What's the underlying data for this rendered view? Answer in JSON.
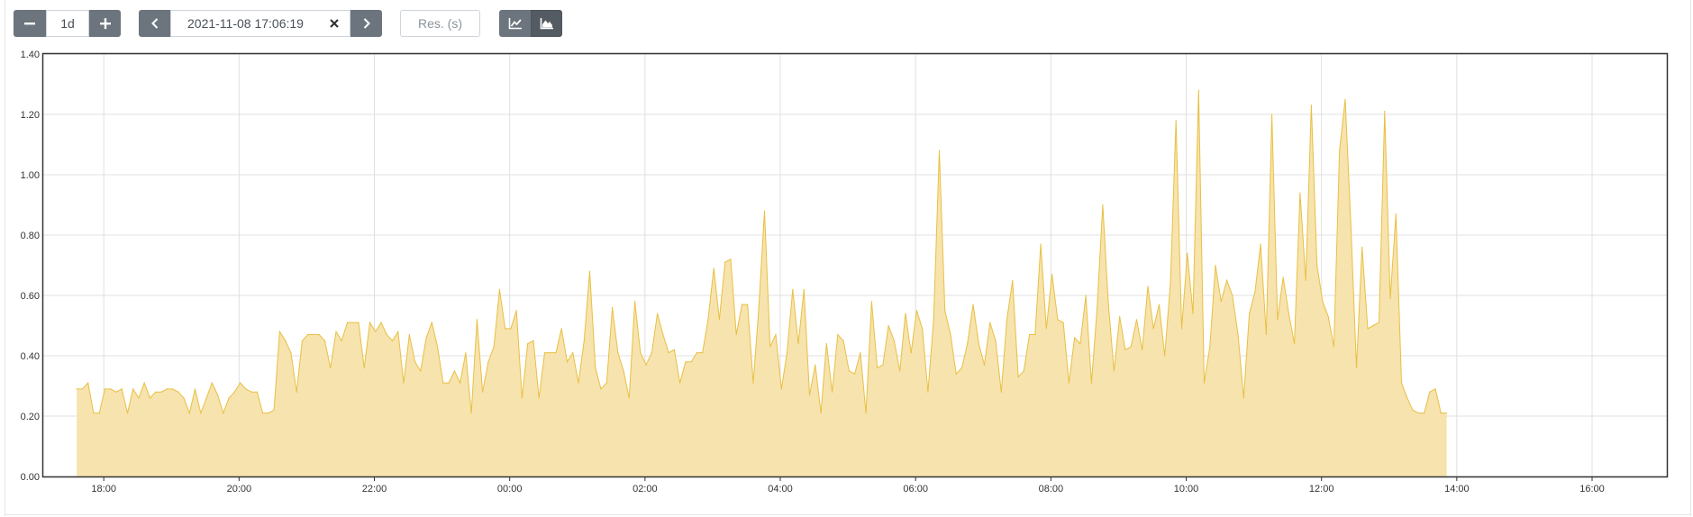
{
  "toolbar": {
    "range_value": "1d",
    "end_time_value": "2021-11-08 17:06:19",
    "resolution_placeholder": "Res. (s)",
    "icons": {
      "decrease": "minus-icon",
      "increase": "plus-icon",
      "previous": "chevron-left-icon",
      "clear": "close-icon",
      "next": "chevron-right-icon",
      "line_mode": "line-chart-icon",
      "stacked_mode": "area-chart-icon"
    },
    "stacked_mode_active": true
  },
  "chart_data": {
    "type": "area",
    "title": "",
    "xlabel": "",
    "ylabel": "",
    "ylim": [
      0,
      1.4
    ],
    "y_ticks": [
      "0.00",
      "0.20",
      "0.40",
      "0.60",
      "0.80",
      "1.00",
      "1.20",
      "1.40"
    ],
    "x_ticks": [
      "18:00",
      "20:00",
      "22:00",
      "00:00",
      "02:00",
      "04:00",
      "06:00",
      "08:00",
      "10:00",
      "12:00",
      "14:00",
      "16:00"
    ],
    "x_range": [
      "2021-11-07 17:06:19",
      "2021-11-08 17:06:19"
    ],
    "grid": true,
    "legend": "none",
    "colors": {
      "fill": "#f7e3ae",
      "line": "#e8c042",
      "grid": "#e0e0e0",
      "axis": "#333333"
    },
    "series": [
      {
        "start": "2021-11-07 17:36",
        "step_minutes": 5,
        "values": [
          0.29,
          0.29,
          0.31,
          0.21,
          0.21,
          0.29,
          0.29,
          0.28,
          0.29,
          0.21,
          0.29,
          0.26,
          0.31,
          0.26,
          0.28,
          0.28,
          0.29,
          0.29,
          0.28,
          0.26,
          0.21,
          0.29,
          0.21,
          0.26,
          0.31,
          0.27,
          0.21,
          0.26,
          0.28,
          0.31,
          0.29,
          0.28,
          0.28,
          0.21,
          0.21,
          0.22,
          0.48,
          0.45,
          0.41,
          0.28,
          0.45,
          0.47,
          0.47,
          0.47,
          0.45,
          0.36,
          0.48,
          0.45,
          0.51,
          0.51,
          0.51,
          0.36,
          0.51,
          0.48,
          0.51,
          0.47,
          0.45,
          0.48,
          0.31,
          0.47,
          0.38,
          0.35,
          0.46,
          0.51,
          0.43,
          0.31,
          0.31,
          0.35,
          0.31,
          0.41,
          0.21,
          0.52,
          0.28,
          0.38,
          0.43,
          0.62,
          0.49,
          0.49,
          0.55,
          0.26,
          0.44,
          0.45,
          0.26,
          0.41,
          0.41,
          0.41,
          0.49,
          0.38,
          0.41,
          0.31,
          0.45,
          0.68,
          0.36,
          0.29,
          0.31,
          0.56,
          0.41,
          0.35,
          0.26,
          0.58,
          0.41,
          0.37,
          0.41,
          0.54,
          0.47,
          0.41,
          0.42,
          0.31,
          0.38,
          0.38,
          0.41,
          0.41,
          0.52,
          0.69,
          0.52,
          0.71,
          0.72,
          0.47,
          0.57,
          0.57,
          0.31,
          0.56,
          0.88,
          0.43,
          0.47,
          0.29,
          0.41,
          0.62,
          0.44,
          0.62,
          0.27,
          0.37,
          0.21,
          0.44,
          0.28,
          0.47,
          0.45,
          0.35,
          0.34,
          0.41,
          0.21,
          0.58,
          0.36,
          0.37,
          0.5,
          0.45,
          0.35,
          0.54,
          0.41,
          0.55,
          0.49,
          0.28,
          0.52,
          1.08,
          0.55,
          0.47,
          0.34,
          0.36,
          0.44,
          0.57,
          0.44,
          0.37,
          0.51,
          0.45,
          0.28,
          0.52,
          0.65,
          0.33,
          0.35,
          0.47,
          0.47,
          0.77,
          0.49,
          0.67,
          0.52,
          0.51,
          0.31,
          0.46,
          0.44,
          0.6,
          0.31,
          0.56,
          0.9,
          0.57,
          0.35,
          0.53,
          0.42,
          0.43,
          0.52,
          0.42,
          0.63,
          0.49,
          0.57,
          0.4,
          0.64,
          1.18,
          0.49,
          0.74,
          0.54,
          1.28,
          0.31,
          0.43,
          0.7,
          0.58,
          0.65,
          0.6,
          0.47,
          0.26,
          0.54,
          0.61,
          0.77,
          0.47,
          1.2,
          0.52,
          0.66,
          0.54,
          0.44,
          0.94,
          0.65,
          1.23,
          0.7,
          0.58,
          0.53,
          0.43,
          1.08,
          1.25,
          0.84,
          0.36,
          0.76,
          0.49,
          0.5,
          0.51,
          1.21,
          0.59,
          0.87,
          0.31,
          0.26,
          0.22,
          0.21,
          0.21,
          0.28,
          0.29,
          0.21,
          0.21
        ]
      }
    ]
  }
}
